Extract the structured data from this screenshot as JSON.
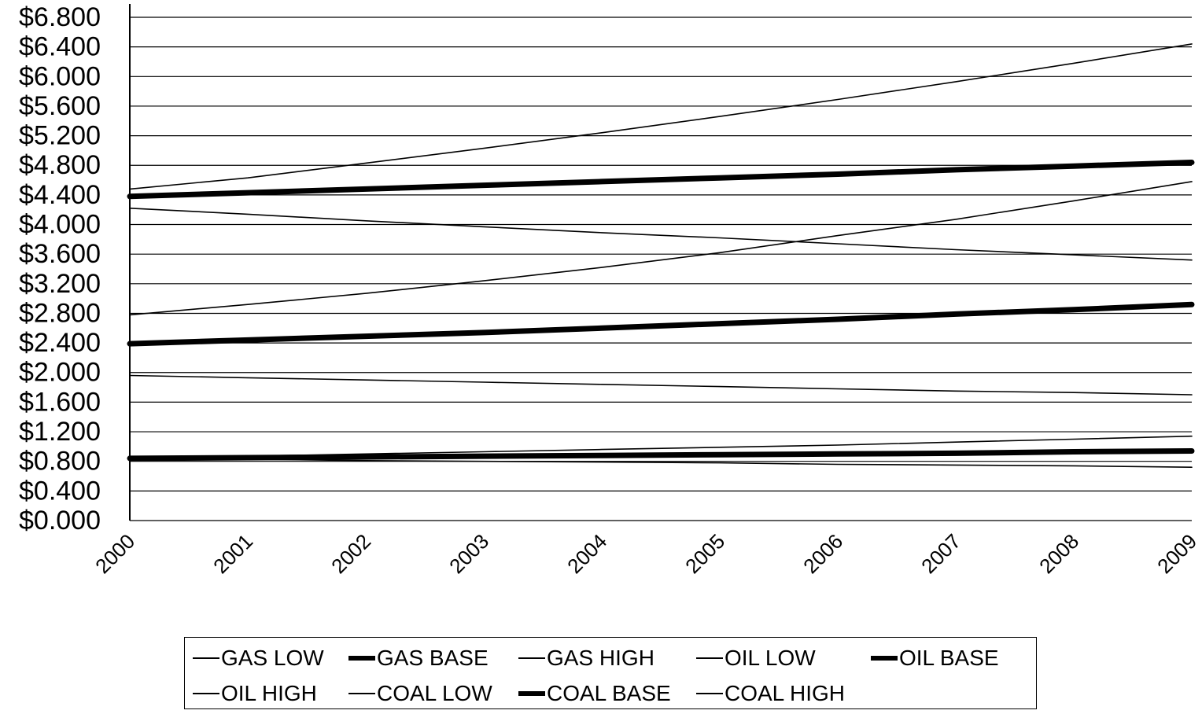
{
  "chart_data": {
    "type": "line",
    "x": [
      "2000",
      "2001",
      "2002",
      "2003",
      "2004",
      "2005",
      "2006",
      "2007",
      "2008",
      "2009"
    ],
    "ylim": [
      0,
      6.8
    ],
    "yticks": [
      "$0.000",
      "$0.400",
      "$0.800",
      "$1.200",
      "$1.600",
      "$2.000",
      "$2.400",
      "$2.800",
      "$3.200",
      "$3.600",
      "$4.000",
      "$4.400",
      "$4.800",
      "$5.200",
      "$5.600",
      "$6.000",
      "$6.400",
      "$6.800"
    ],
    "grid": true,
    "legend_position": "bottom",
    "series": [
      {
        "name": "GAS LOW",
        "weight": "thin",
        "values": [
          4.22,
          4.14,
          4.05,
          3.97,
          3.89,
          3.82,
          3.74,
          3.66,
          3.59,
          3.52
        ]
      },
      {
        "name": "GAS BASE",
        "weight": "thick",
        "values": [
          4.38,
          4.43,
          4.48,
          4.53,
          4.58,
          4.63,
          4.68,
          4.74,
          4.79,
          4.84
        ]
      },
      {
        "name": "GAS HIGH",
        "weight": "thin",
        "values": [
          4.48,
          4.63,
          4.83,
          5.03,
          5.24,
          5.46,
          5.69,
          5.93,
          6.18,
          6.44
        ]
      },
      {
        "name": "OIL LOW",
        "weight": "thin",
        "values": [
          1.96,
          1.93,
          1.9,
          1.87,
          1.84,
          1.81,
          1.78,
          1.75,
          1.73,
          1.7
        ]
      },
      {
        "name": "OIL BASE",
        "weight": "thick",
        "values": [
          2.39,
          2.44,
          2.49,
          2.54,
          2.6,
          2.66,
          2.72,
          2.79,
          2.85,
          2.92
        ]
      },
      {
        "name": "OIL HIGH",
        "weight": "thin",
        "values": [
          2.78,
          2.92,
          3.07,
          3.24,
          3.42,
          3.62,
          3.85,
          4.07,
          4.32,
          4.58
        ]
      },
      {
        "name": "COAL LOW",
        "weight": "thin",
        "values": [
          0.84,
          0.83,
          0.81,
          0.8,
          0.79,
          0.78,
          0.76,
          0.75,
          0.74,
          0.72
        ]
      },
      {
        "name": "COAL BASE",
        "weight": "thick",
        "values": [
          0.84,
          0.85,
          0.86,
          0.87,
          0.88,
          0.89,
          0.9,
          0.91,
          0.93,
          0.94
        ]
      },
      {
        "name": "COAL HIGH",
        "weight": "thin",
        "values": [
          0.84,
          0.87,
          0.9,
          0.93,
          0.96,
          0.99,
          1.02,
          1.06,
          1.1,
          1.14
        ]
      }
    ]
  }
}
